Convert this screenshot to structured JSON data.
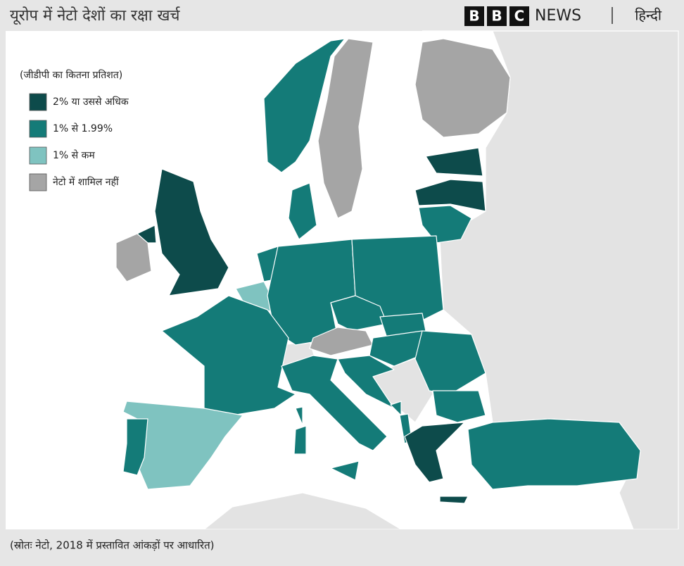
{
  "header": {
    "title": "यूरोप में नेटो देशों का रक्षा खर्च",
    "brand": {
      "letters": [
        "B",
        "B",
        "C"
      ],
      "name": "NEWS",
      "language": "हिन्दी"
    }
  },
  "legend": {
    "title": "(जीडीपी का कितना प्रतिशत)",
    "items": [
      {
        "label": "2% या उससे अधिक",
        "color": "#0d4b4b"
      },
      {
        "label": "1% से 1.99%",
        "color": "#147b78"
      },
      {
        "label": "1% से कम",
        "color": "#7fc3c0"
      },
      {
        "label": "नेटो में शामिल नहीं",
        "color": "#a5a5a5"
      }
    ]
  },
  "footer": {
    "source": "(स्रोतः नेटो, 2018 में प्रस्तावित आंकड़ों पर आधारित)"
  }
}
